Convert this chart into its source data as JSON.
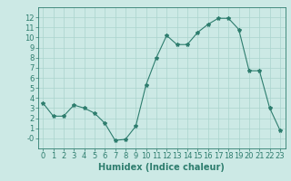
{
  "x": [
    0,
    1,
    2,
    3,
    4,
    5,
    6,
    7,
    8,
    9,
    10,
    11,
    12,
    13,
    14,
    15,
    16,
    17,
    18,
    19,
    20,
    21,
    22,
    23
  ],
  "y": [
    3.5,
    2.2,
    2.2,
    3.3,
    3.0,
    2.5,
    1.5,
    -0.2,
    -0.1,
    1.2,
    5.3,
    8.0,
    10.2,
    9.3,
    9.3,
    10.5,
    11.3,
    11.9,
    11.9,
    10.8,
    6.7,
    6.7,
    3.0,
    0.8
  ],
  "line_color": "#2e7d6e",
  "marker": "*",
  "marker_size": 3,
  "bg_color": "#cce9e5",
  "grid_color": "#aad4ce",
  "xlabel": "Humidex (Indice chaleur)",
  "xlim": [
    -0.5,
    23.5
  ],
  "ylim": [
    -1,
    13
  ],
  "yticks": [
    0,
    1,
    2,
    3,
    4,
    5,
    6,
    7,
    8,
    9,
    10,
    11,
    12
  ],
  "xticks": [
    0,
    1,
    2,
    3,
    4,
    5,
    6,
    7,
    8,
    9,
    10,
    11,
    12,
    13,
    14,
    15,
    16,
    17,
    18,
    19,
    20,
    21,
    22,
    23
  ],
  "tick_label_size": 6,
  "xlabel_size": 7
}
